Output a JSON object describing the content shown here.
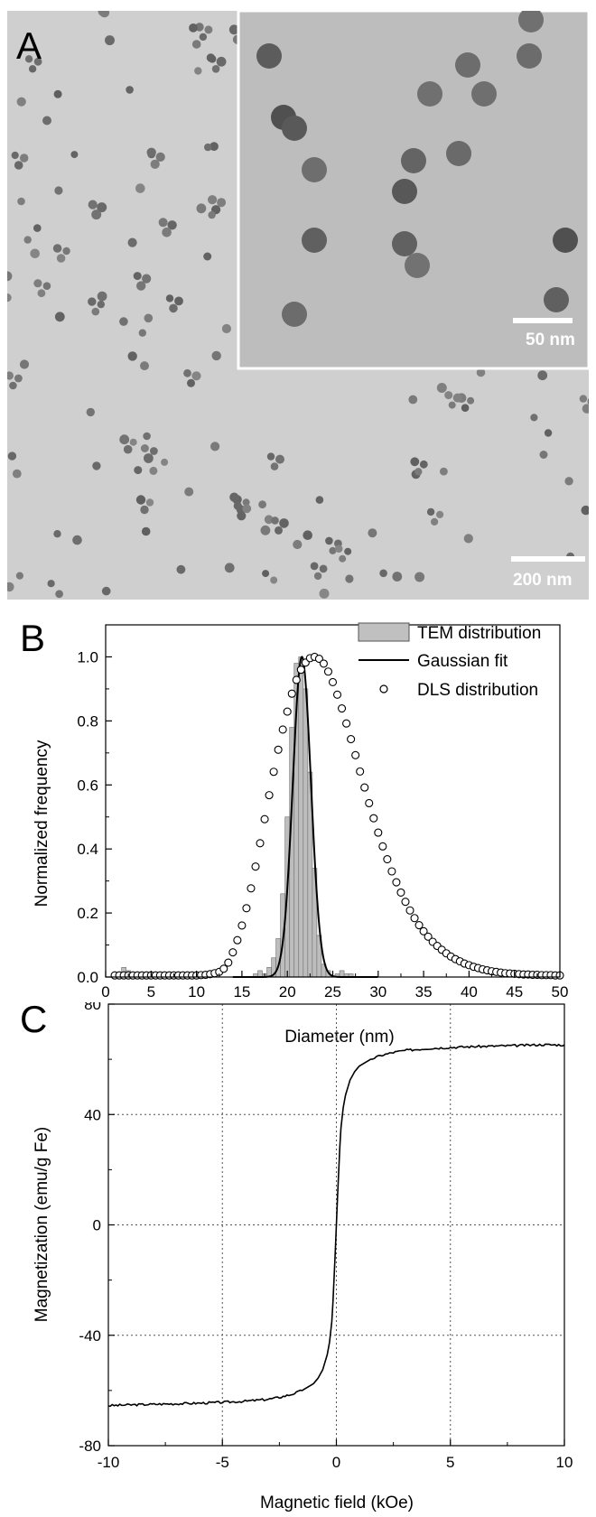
{
  "panels": {
    "a": {
      "label": "A",
      "scale_main": "200 nm",
      "scale_inset": "50 nm"
    },
    "b": {
      "label": "B"
    },
    "c": {
      "label": "C"
    }
  },
  "chart_data": [
    {
      "type": "bar",
      "title": "",
      "xlabel": "Diameter (nm)",
      "ylabel": "Normalized frequency",
      "xlim": [
        0,
        50
      ],
      "ylim": [
        0,
        1.1
      ],
      "xticks": [
        0,
        5,
        10,
        15,
        20,
        25,
        30,
        35,
        40,
        45,
        50
      ],
      "yticks": [
        0.0,
        0.2,
        0.4,
        0.6,
        0.8,
        1.0
      ],
      "legend_position": "top-right",
      "legend": [
        "TEM distribution",
        "Gaussian fit",
        "DLS distribution"
      ],
      "series": [
        {
          "name": "TEM distribution",
          "kind": "histogram",
          "x": [
            2.0,
            2.5,
            3.0,
            16.5,
            17.0,
            17.5,
            18.0,
            18.5,
            19.0,
            19.5,
            20.0,
            20.5,
            21.0,
            21.5,
            22.0,
            22.5,
            23.0,
            23.5,
            24.0,
            24.5,
            25.5,
            26.0,
            26.5,
            27.0
          ],
          "values": [
            0.03,
            0.02,
            0.01,
            0.01,
            0.02,
            0.01,
            0.03,
            0.06,
            0.12,
            0.26,
            0.5,
            0.78,
            0.98,
            1.0,
            0.9,
            0.64,
            0.34,
            0.13,
            0.04,
            0.02,
            0.01,
            0.02,
            0.01,
            0.01
          ]
        },
        {
          "name": "Gaussian fit",
          "kind": "line",
          "center": 21.6,
          "sigma": 1.0,
          "amplitude": 1.0
        },
        {
          "name": "DLS distribution",
          "kind": "scatter",
          "x": [
            1.0,
            1.5,
            2.0,
            2.5,
            3.0,
            3.5,
            4.0,
            4.5,
            5.0,
            5.5,
            6.0,
            6.5,
            7.0,
            7.5,
            8.0,
            8.5,
            9.0,
            9.5,
            10.0,
            10.5,
            11.0,
            11.5,
            12.0,
            12.5,
            13.0,
            13.5,
            14.0,
            14.5,
            15.0,
            15.5,
            16.0,
            16.5,
            17.0,
            17.5,
            18.0,
            18.5,
            19.0,
            19.5,
            20.0,
            20.5,
            21.0,
            21.5,
            22.0,
            22.5,
            23.0,
            23.5,
            24.0,
            24.5,
            25.0,
            25.5,
            26.0,
            26.5,
            27.0,
            27.5,
            28.0,
            28.5,
            29.0,
            29.5,
            30.0,
            30.5,
            31.0,
            31.5,
            32.0,
            32.5,
            33.0,
            33.5,
            34.0,
            34.5,
            35.0,
            35.5,
            36.0,
            36.5,
            37.0,
            37.5,
            38.0,
            38.5,
            39.0,
            39.5,
            40.0,
            40.5,
            41.0,
            41.5,
            42.0,
            42.5,
            43.0,
            43.5,
            44.0,
            44.5,
            45.0,
            45.5,
            46.0,
            46.5,
            47.0,
            47.5,
            48.0,
            48.5,
            49.0,
            49.5,
            50.0
          ],
          "values": [
            0.005,
            0.005,
            0.005,
            0.005,
            0.005,
            0.005,
            0.005,
            0.005,
            0.005,
            0.005,
            0.005,
            0.005,
            0.005,
            0.005,
            0.005,
            0.005,
            0.005,
            0.005,
            0.005,
            0.006,
            0.007,
            0.009,
            0.012,
            0.016,
            0.026,
            0.045,
            0.077,
            0.115,
            0.161,
            0.215,
            0.277,
            0.345,
            0.418,
            0.493,
            0.568,
            0.641,
            0.71,
            0.773,
            0.829,
            0.885,
            0.928,
            0.96,
            0.982,
            0.996,
            1.0,
            0.994,
            0.979,
            0.954,
            0.921,
            0.882,
            0.839,
            0.792,
            0.743,
            0.693,
            0.642,
            0.592,
            0.543,
            0.496,
            0.451,
            0.408,
            0.368,
            0.33,
            0.296,
            0.264,
            0.235,
            0.208,
            0.184,
            0.162,
            0.143,
            0.126,
            0.11,
            0.097,
            0.085,
            0.074,
            0.064,
            0.056,
            0.049,
            0.042,
            0.037,
            0.032,
            0.028,
            0.024,
            0.021,
            0.018,
            0.016,
            0.014,
            0.012,
            0.011,
            0.01,
            0.009,
            0.008,
            0.008,
            0.007,
            0.007,
            0.006,
            0.006,
            0.006,
            0.005,
            0.005
          ]
        }
      ]
    },
    {
      "type": "line",
      "title": "",
      "xlabel": "Magnetic field (kOe)",
      "ylabel": "Magnetization (emu/g Fe)",
      "xlim": [
        -10,
        10
      ],
      "ylim": [
        -80,
        80
      ],
      "xticks": [
        -10,
        -5,
        0,
        5,
        10
      ],
      "yticks": [
        -80,
        -40,
        0,
        40,
        80
      ],
      "grid": true,
      "series": [
        {
          "name": "",
          "x": [
            -10,
            -9,
            -8,
            -7,
            -6,
            -5,
            -4,
            -3,
            -2.5,
            -2,
            -1.5,
            -1,
            -0.8,
            -0.6,
            -0.4,
            -0.3,
            -0.2,
            -0.15,
            -0.1,
            -0.05,
            0,
            0.05,
            0.1,
            0.15,
            0.2,
            0.3,
            0.4,
            0.6,
            0.8,
            1,
            1.5,
            2,
            2.5,
            3,
            4,
            5,
            6,
            7,
            8,
            9,
            10
          ],
          "values": [
            -65.5,
            -65.2,
            -65.0,
            -64.8,
            -64.6,
            -64.3,
            -63.9,
            -63.2,
            -62.5,
            -61.5,
            -60.0,
            -57.5,
            -55.5,
            -52.5,
            -47.0,
            -42.5,
            -35.0,
            -28.0,
            -19.0,
            -10.0,
            0,
            10.0,
            19.0,
            28.0,
            35.0,
            42.5,
            47.0,
            52.5,
            55.5,
            57.5,
            60.0,
            61.5,
            62.5,
            63.2,
            63.9,
            64.3,
            64.6,
            64.8,
            65.0,
            65.3,
            65.2
          ]
        }
      ]
    }
  ]
}
